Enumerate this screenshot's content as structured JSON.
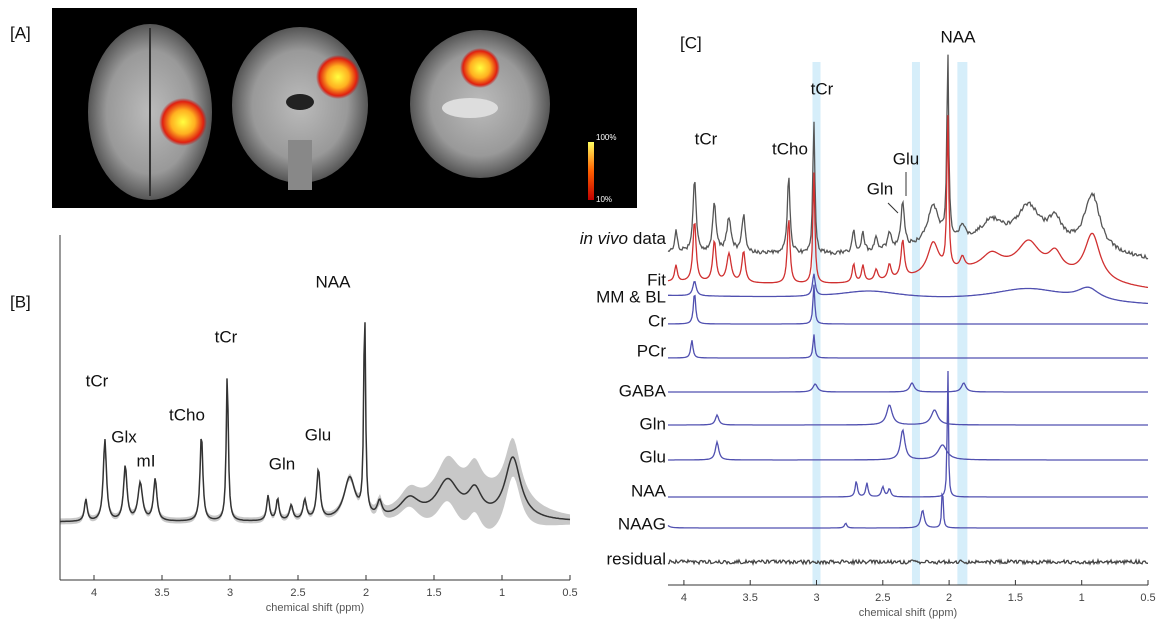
{
  "panels": {
    "A": {
      "label": "[A]",
      "colorbar": {
        "max": "100%",
        "min": "10%"
      }
    },
    "B": {
      "label": "[B]",
      "peaks": [
        "tCr",
        "Glx",
        "mI",
        "tCho",
        "tCr",
        "Gln",
        "Glu",
        "NAA"
      ],
      "xlabel": "chemical shift (ppm)",
      "xlim": [
        4.25,
        0.5
      ],
      "xticks": [
        4,
        3.5,
        3,
        2.5,
        2,
        1.5,
        1,
        0.5
      ]
    },
    "C": {
      "label": "[C]",
      "peaks": [
        "NAA",
        "tCr",
        "tCr",
        "tCho",
        "Glu",
        "Gln"
      ],
      "in_vivo": "in vivo",
      "rows": [
        "data",
        "Fit",
        "MM & BL",
        "Cr",
        "PCr",
        "GABA",
        "Gln",
        "Glu",
        "NAA",
        "NAAG",
        "residual"
      ],
      "xlabel": "chemical shift (ppm)",
      "xlim": [
        4.12,
        0.5
      ],
      "xticks": [
        4,
        3.5,
        3,
        2.5,
        2,
        1.5,
        1,
        0.5
      ]
    }
  }
}
